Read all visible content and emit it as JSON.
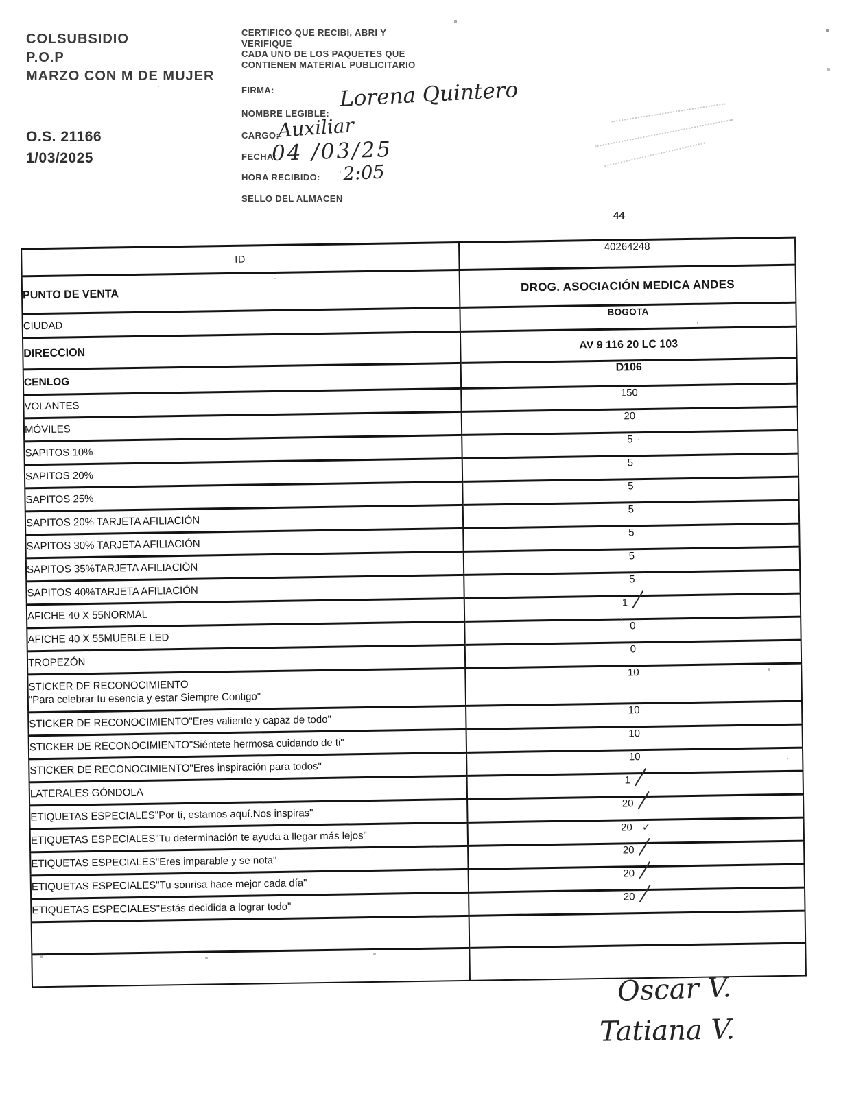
{
  "header": {
    "left": {
      "brand": "COLSUBSIDIO",
      "program": "P.O.P",
      "campaign": "MARZO CON M DE MUJER",
      "order_number": "O.S. 21166",
      "date": "1/03/2025"
    },
    "center": {
      "cert_lines": [
        "CERTIFICO QUE RECIBI, ABRI Y",
        "VERIFIQUE",
        "CADA  UNO DE LOS PAQUETES QUE",
        "CONTIENEN MATERIAL PUBLICITARIO"
      ],
      "firma_label": "FIRMA:",
      "nombre_label": "NOMBRE LEGIBLE:",
      "nombre_value": "Lorena Quintero",
      "cargo_label": "CARGO:",
      "cargo_value": "Auxiliar",
      "fecha_label": "FECHA:",
      "fecha_value": "04 /03/25",
      "hora_label": "HORA RECIBIDO:",
      "hora_value": "2:05",
      "sello_label": "SELLO DEL ALMACEN"
    },
    "page_number": "44"
  },
  "table": {
    "rows": [
      {
        "label": "ID",
        "value": "40264248",
        "variant": "id"
      },
      {
        "label": "PUNTO DE VENTA",
        "value": "DROG. ASOCIACIÓN MEDICA ANDES",
        "variant": "title"
      },
      {
        "label": "CIUDAD",
        "value": "BOGOTA",
        "variant": "city"
      },
      {
        "label": "DIRECCION",
        "value": "AV 9 116 20 LC 103",
        "variant": "bold"
      },
      {
        "label": "CENLOG",
        "value": "D106",
        "variant": "bold-sm"
      },
      {
        "label": "VOLANTES",
        "value": "150"
      },
      {
        "label": "MÓVILES",
        "value": "20"
      },
      {
        "label": "SAPITOS 10%",
        "value": "5"
      },
      {
        "label": "SAPITOS 20%",
        "value": "5"
      },
      {
        "label": "SAPITOS 25%",
        "value": "5"
      },
      {
        "label": "SAPITOS 20% TARJETA AFILIACIÓN",
        "value": "5"
      },
      {
        "label": "SAPITOS 30% TARJETA AFILIACIÓN",
        "value": "5"
      },
      {
        "label": "SAPITOS 35%TARJETA AFILIACIÓN",
        "value": "5"
      },
      {
        "label": "SAPITOS 40%TARJETA AFILIACIÓN",
        "value": "5"
      },
      {
        "label": "AFICHE 40 X 55NORMAL",
        "value": "1",
        "mark": "slash"
      },
      {
        "label": "AFICHE 40 X 55MUEBLE LED",
        "value": "0"
      },
      {
        "label": "TROPEZÓN",
        "value": "0"
      },
      {
        "label": "STICKER DE RECONOCIMIENTO",
        "label2": "\"Para celebrar tu esencia y estar Siempre Contigo\"",
        "value": "10"
      },
      {
        "label": "STICKER DE RECONOCIMIENTO\"Eres valiente y capaz de todo\"",
        "value": "10"
      },
      {
        "label": "STICKER DE RECONOCIMIENTO\"Siéntete hermosa cuidando de ti\"",
        "value": "10"
      },
      {
        "label": "STICKER DE RECONOCIMIENTO\"Eres inspiración para todos\"",
        "value": "10"
      },
      {
        "label": "LATERALES GÓNDOLA",
        "value": "1",
        "mark": "slash"
      },
      {
        "label": "ETIQUETAS ESPECIALES\"Por ti, estamos aquí.Nos inspiras\"",
        "value": "20",
        "mark": "slash"
      },
      {
        "label": "ETIQUETAS ESPECIALES\"Tu determinación te ayuda a llegar más lejos\"",
        "value": "20",
        "mark": "check"
      },
      {
        "label": "ETIQUETAS ESPECIALES\"Eres imparable y se nota\"",
        "value": "20",
        "mark": "slash"
      },
      {
        "label": "ETIQUETAS ESPECIALES\"Tu sonrisa hace mejor cada día\"",
        "value": "20",
        "mark": "slash"
      },
      {
        "label": "ETIQUETAS ESPECIALES\"Estás decidida a lograr todo\"",
        "value": "20",
        "mark": "slash"
      },
      {
        "label": "",
        "value": "",
        "variant": "empty"
      },
      {
        "label": "",
        "value": "",
        "variant": "empty"
      }
    ]
  },
  "signatures": {
    "line1": "Oscar V.",
    "line2": "Tatiana V."
  },
  "colors": {
    "printed_ink": "#3a3a3a",
    "table_ink": "#161616",
    "handwriting_ink": "#242424"
  }
}
